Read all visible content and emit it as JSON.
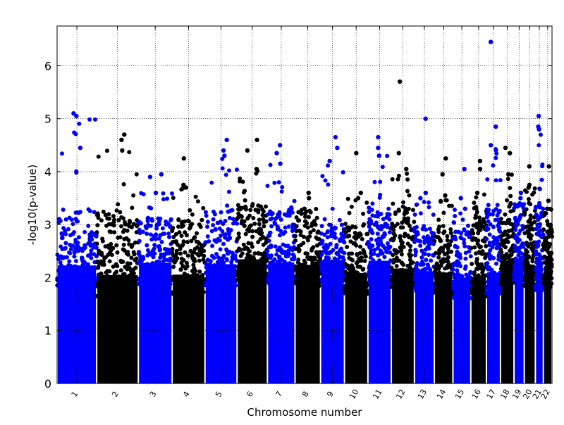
{
  "chart_data": {
    "type": "scatter",
    "title": "",
    "xlabel": "Chromosome number",
    "ylabel": "-log10(p-value)",
    "ylim": [
      0,
      6.75
    ],
    "yticks": [
      0,
      1,
      2,
      3,
      4,
      5,
      6
    ],
    "grid": true,
    "legend": "none",
    "colors": {
      "odd": "#0000ff",
      "even": "#000000"
    },
    "chromosomes": [
      {
        "label": "1",
        "start": 0,
        "end": 2.28,
        "color": "#0000ff",
        "base_max": 3.3,
        "top_hits": [
          4.45,
          5.1,
          5.05
        ]
      },
      {
        "label": "2",
        "start": 2.28,
        "end": 4.68,
        "color": "#000000",
        "base_max": 3.3,
        "top_hits": [
          4.7,
          4.6,
          4.4
        ]
      },
      {
        "label": "3",
        "start": 4.68,
        "end": 6.63,
        "color": "#0000ff",
        "base_max": 3.2,
        "top_hits": [
          3.95,
          3.9,
          3.6
        ]
      },
      {
        "label": "4",
        "start": 6.63,
        "end": 8.52,
        "color": "#000000",
        "base_max": 3.1,
        "top_hits": [
          4.25,
          3.75,
          3.7
        ]
      },
      {
        "label": "5",
        "start": 8.52,
        "end": 10.37,
        "color": "#0000ff",
        "base_max": 3.3,
        "top_hits": [
          4.6,
          4.4,
          4.3
        ]
      },
      {
        "label": "6",
        "start": 10.37,
        "end": 12.12,
        "color": "#000000",
        "base_max": 3.4,
        "top_hits": [
          4.6,
          4.4,
          4.05
        ]
      },
      {
        "label": "7",
        "start": 12.12,
        "end": 13.71,
        "color": "#0000ff",
        "base_max": 3.3,
        "top_hits": [
          4.5,
          4.35,
          4.15
        ]
      },
      {
        "label": "8",
        "start": 13.71,
        "end": 15.18,
        "color": "#000000",
        "base_max": 3.2,
        "top_hits": [
          3.6,
          3.5,
          3.3
        ]
      },
      {
        "label": "9",
        "start": 15.18,
        "end": 16.56,
        "color": "#0000ff",
        "base_max": 3.0,
        "top_hits": [
          4.65,
          4.45,
          4.2
        ]
      },
      {
        "label": "10",
        "start": 16.56,
        "end": 17.91,
        "color": "#000000",
        "base_max": 3.0,
        "top_hits": [
          4.35,
          3.6,
          3.5
        ]
      },
      {
        "label": "11",
        "start": 17.91,
        "end": 19.26,
        "color": "#0000ff",
        "base_max": 3.3,
        "top_hits": [
          4.65,
          4.45,
          4.3
        ]
      },
      {
        "label": "12",
        "start": 19.26,
        "end": 20.59,
        "color": "#000000",
        "base_max": 3.4,
        "top_hits": [
          5.7,
          4.35,
          4.05
        ]
      },
      {
        "label": "13",
        "start": 20.59,
        "end": 21.74,
        "color": "#0000ff",
        "base_max": 3.0,
        "top_hits": [
          5.0,
          3.6,
          3.5
        ]
      },
      {
        "label": "14",
        "start": 21.74,
        "end": 22.81,
        "color": "#000000",
        "base_max": 3.0,
        "top_hits": [
          4.25,
          3.95,
          3.55
        ]
      },
      {
        "label": "15",
        "start": 22.81,
        "end": 23.84,
        "color": "#0000ff",
        "base_max": 2.9,
        "top_hits": [
          4.05,
          3.5,
          3.3
        ]
      },
      {
        "label": "16",
        "start": 23.84,
        "end": 24.74,
        "color": "#000000",
        "base_max": 3.2,
        "top_hits": [
          4.2,
          4.05,
          3.6
        ]
      },
      {
        "label": "17",
        "start": 24.74,
        "end": 25.55,
        "color": "#0000ff",
        "base_max": 3.4,
        "top_hits": [
          6.45,
          4.85,
          4.5
        ]
      },
      {
        "label": "18",
        "start": 25.55,
        "end": 26.33,
        "color": "#000000",
        "base_max": 3.3,
        "top_hits": [
          4.45,
          4.35,
          3.95
        ]
      },
      {
        "label": "19",
        "start": 26.33,
        "end": 26.92,
        "color": "#0000ff",
        "base_max": 3.3,
        "top_hits": [
          3.6,
          3.5,
          3.4
        ]
      },
      {
        "label": "20",
        "start": 26.92,
        "end": 27.56,
        "color": "#000000",
        "base_max": 3.3,
        "top_hits": [
          4.1,
          3.75,
          3.7
        ]
      },
      {
        "label": "21",
        "start": 27.56,
        "end": 28.02,
        "color": "#0000ff",
        "base_max": 3.4,
        "top_hits": [
          5.05,
          4.85,
          4.8
        ]
      },
      {
        "label": "22",
        "start": 28.02,
        "end": 28.52,
        "color": "#000000",
        "base_max": 3.0,
        "top_hits": [
          4.1,
          3.45,
          3.3
        ]
      }
    ]
  }
}
